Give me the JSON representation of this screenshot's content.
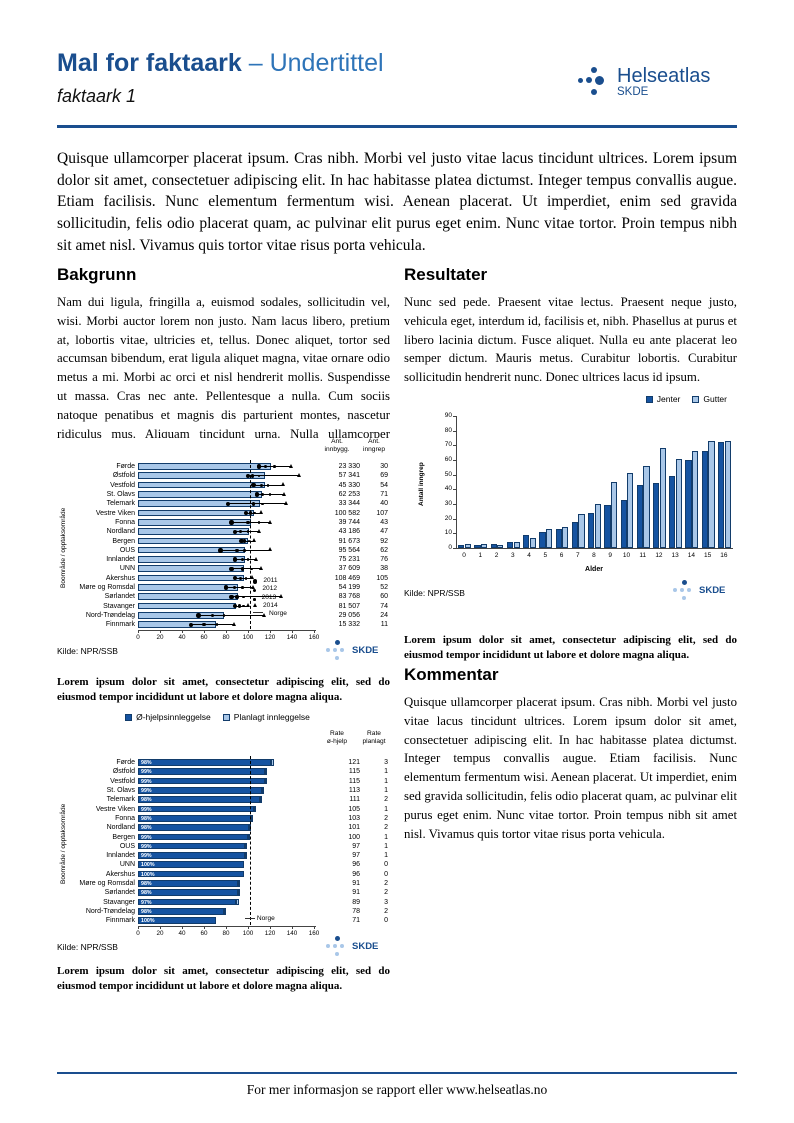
{
  "header": {
    "title": "Mal for faktaark",
    "subtitle": "– Undertittel",
    "subheading": "faktaark 1",
    "logo": {
      "name": "Helseatlas",
      "org": "SKDE"
    }
  },
  "intro": "Quisque ullamcorper placerat ipsum. Cras nibh. Morbi vel justo vitae lacus tincidunt ultrices. Lorem ipsum dolor sit amet, consectetuer adipiscing elit. In hac habitasse platea dictumst. Integer tempus convallis augue. Etiam facilisis. Nunc elementum fermentum wisi. Aenean placerat. Ut imperdiet, enim sed gravida sollicitudin, felis odio placerat quam, ac pulvinar elit purus eget enim. Nunc vitae tortor. Proin tempus nibh sit amet nisl. Vivamus quis tortor vitae risus porta vehicula.",
  "sections": {
    "bakgrunn": {
      "title": "Bakgrunn",
      "body": "Nam dui ligula, fringilla a, euismod sodales, sollicitudin vel, wisi. Morbi auctor lorem non justo. Nam lacus libero, pretium at, lobortis vitae, ultricies et, tellus. Donec aliquet, tortor sed accumsan bibendum, erat ligula aliquet magna, vitae ornare odio metus a mi. Morbi ac orci et nisl hendrerit mollis. Suspendisse ut massa. Cras nec ante. Pellentesque a nulla. Cum sociis natoque penatibus et magnis dis parturient montes, nascetur ridiculus mus. Aliquam tincidunt urna. Nulla ullamcorper vestibulum turpis. Pellentesque cursus luctus mauris."
    },
    "resultater": {
      "title": "Resultater",
      "body": "Nunc sed pede. Praesent vitae lectus. Praesent neque justo, vehicula eget, interdum id, facilisis et, nibh. Phasellus at purus et libero lacinia dictum. Fusce aliquet. Nulla eu ante placerat leo semper dictum. Mauris metus. Curabitur lobortis. Curabitur sollicitudin hendrerit nunc. Donec ultrices lacus id ipsum."
    },
    "kommentar": {
      "title": "Kommentar",
      "body": "Quisque ullamcorper placerat ipsum. Cras nibh. Morbi vel justo vitae lacus tincidunt ultrices. Lorem ipsum dolor sit amet, consectetuer adipiscing elit. In hac habitasse platea dictumst. Integer tempus convallis augue. Etiam facilisis. Nunc elementum fermentum wisi. Aenean placerat. Ut imperdiet, enim sed gravida sollicitudin, felis odio placerat quam, ac pulvinar elit purus eget enim. Nunc vitae tortor. Proin tempus nibh sit amet nisl. Vivamus quis tortor vitae risus porta vehicula."
    }
  },
  "caption_text": "Lorem ipsum dolor sit amet, consectetur adipiscing elit, sed do eiusmod tempor incididunt ut labore et dolore magna aliqua.",
  "footer": {
    "text": "For mer informasjon se rapport eller www.helseatlas.no"
  },
  "colors": {
    "accent_dark": "#1a4e8e",
    "accent_mid": "#2e74b8",
    "bar_dark": "#1553a1",
    "bar_light": "#a9c7e8",
    "bar_border": "#123c6b",
    "marker_black": "#000000"
  },
  "chart_data": [
    {
      "id": "regions-rate-ci",
      "type": "bar",
      "orientation": "horizontal",
      "ylabel": "Boområde / opptaksområde",
      "xlim": [
        0,
        160
      ],
      "xticks": [
        0,
        20,
        40,
        60,
        80,
        100,
        120,
        140,
        160
      ],
      "categories": [
        "Førde",
        "Østfold",
        "Vestfold",
        "St. Olavs",
        "Telemark",
        "Vestre Viken",
        "Fonna",
        "Nordland",
        "Bergen",
        "OUS",
        "Innlandet",
        "UNN",
        "Akershus",
        "Møre og Romsdal",
        "Sørlandet",
        "Stavanger",
        "Nord-Trøndelag",
        "Finnmark"
      ],
      "values": [
        121,
        115,
        115,
        113,
        111,
        105,
        103,
        101,
        100,
        97,
        97,
        96,
        96,
        91,
        91,
        89,
        78,
        71
      ],
      "col_headers": [
        [
          "Ant.",
          "innbygg."
        ],
        [
          "Ant.",
          "inngrep"
        ]
      ],
      "ant_innbygg": [
        "23 330",
        "57 341",
        "45 330",
        "62 253",
        "33 344",
        "100 582",
        "39 744",
        "43 186",
        "91 673",
        "95 564",
        "75 231",
        "37 609",
        "108 469",
        "54 199",
        "83 768",
        "81 507",
        "29 056",
        "15 332"
      ],
      "ant_inngrep": [
        "30",
        "69",
        "54",
        "71",
        "40",
        "107",
        "43",
        "47",
        "92",
        "62",
        "76",
        "38",
        "105",
        "52",
        "60",
        "74",
        "24",
        "11"
      ],
      "ci_points": [
        [
          110,
          116,
          124,
          139
        ],
        [
          100,
          104,
          110,
          147
        ],
        [
          105,
          112,
          118,
          132
        ],
        [
          108,
          113,
          120,
          133
        ],
        [
          82,
          105,
          113,
          135
        ],
        [
          98,
          102,
          106,
          112
        ],
        [
          85,
          100,
          110,
          120
        ],
        [
          88,
          93,
          100,
          110
        ],
        [
          94,
          97,
          101,
          106
        ],
        [
          75,
          90,
          97,
          120
        ],
        [
          88,
          95,
          100,
          108
        ],
        [
          85,
          95,
          103,
          112
        ],
        [
          88,
          93,
          98,
          104
        ],
        [
          80,
          88,
          95,
          105
        ],
        [
          85,
          90,
          96,
          130
        ],
        [
          88,
          92,
          96,
          100
        ],
        [
          55,
          68,
          78,
          115
        ],
        [
          48,
          60,
          72,
          88
        ]
      ],
      "legend": [
        "2011",
        "2012",
        "2013",
        "2014",
        "Norge"
      ],
      "norge_value": 102,
      "source": "Kilde: NPR/SSB"
    },
    {
      "id": "regions-admission-type",
      "type": "bar",
      "orientation": "horizontal",
      "stacked": true,
      "legend": [
        "Ø-hjelpsinnleggelse",
        "Planlagt innleggelse"
      ],
      "ylabel": "Boområde / opptaksområde",
      "xlim": [
        0,
        160
      ],
      "xticks": [
        0,
        20,
        40,
        60,
        80,
        100,
        120,
        140,
        160
      ],
      "categories": [
        "Førde",
        "Østfold",
        "Vestfold",
        "St. Olavs",
        "Telemark",
        "Vestre Viken",
        "Fonna",
        "Nordland",
        "Bergen",
        "OUS",
        "Innlandet",
        "UNN",
        "Akershus",
        "Møre og Romsdal",
        "Sørlandet",
        "Stavanger",
        "Nord-Trøndelag",
        "Finnmark"
      ],
      "series": [
        {
          "name": "Ø-hjelpsinnleggelse",
          "values": [
            121,
            115,
            115,
            113,
            111,
            105,
            103,
            101,
            100,
            97,
            97,
            96,
            96,
            91,
            91,
            89,
            78,
            71
          ]
        },
        {
          "name": "Planlagt innleggelse",
          "values": [
            3,
            1,
            1,
            1,
            2,
            1,
            2,
            2,
            1,
            1,
            1,
            0,
            0,
            2,
            2,
            3,
            2,
            0
          ]
        }
      ],
      "bar_labels": [
        "98%",
        "99%",
        "99%",
        "99%",
        "98%",
        "99%",
        "98%",
        "98%",
        "99%",
        "99%",
        "99%",
        "100%",
        "100%",
        "98%",
        "98%",
        "97%",
        "98%",
        "100%"
      ],
      "col_headers": [
        [
          "Rate",
          "ø-hjelp"
        ],
        [
          "Rate",
          "planlagt"
        ]
      ],
      "rate_ehjelp": [
        "121",
        "115",
        "115",
        "113",
        "111",
        "105",
        "103",
        "101",
        "100",
        "97",
        "97",
        "96",
        "96",
        "91",
        "91",
        "89",
        "78",
        "71"
      ],
      "rate_planlagt": [
        "3",
        "1",
        "1",
        "1",
        "2",
        "1",
        "2",
        "2",
        "1",
        "1",
        "1",
        "0",
        "0",
        "2",
        "2",
        "3",
        "2",
        "0"
      ],
      "norge_label": "Norge",
      "norge_value": 102,
      "source": "Kilde: NPR/SSB"
    },
    {
      "id": "age-gender",
      "type": "bar",
      "categories": [
        "0",
        "1",
        "2",
        "3",
        "4",
        "5",
        "6",
        "7",
        "8",
        "9",
        "10",
        "11",
        "12",
        "13",
        "14",
        "15",
        "16"
      ],
      "series": [
        {
          "name": "Jenter",
          "values": [
            2,
            2,
            3,
            4,
            9,
            11,
            13,
            18,
            24,
            29,
            33,
            43,
            44,
            49,
            60,
            66,
            72
          ]
        },
        {
          "name": "Gutter",
          "values": [
            3,
            3,
            2,
            4,
            7,
            13,
            14,
            23,
            30,
            45,
            51,
            56,
            68,
            61,
            66,
            73,
            73
          ]
        }
      ],
      "xlabel": "Alder",
      "ylabel": "Antall inngrep",
      "ylim": [
        0,
        90
      ],
      "yticks": [
        0,
        10,
        20,
        30,
        40,
        50,
        60,
        70,
        80,
        90
      ],
      "legend_position": "top-right",
      "source": "Kilde: NPR/SSB"
    }
  ]
}
